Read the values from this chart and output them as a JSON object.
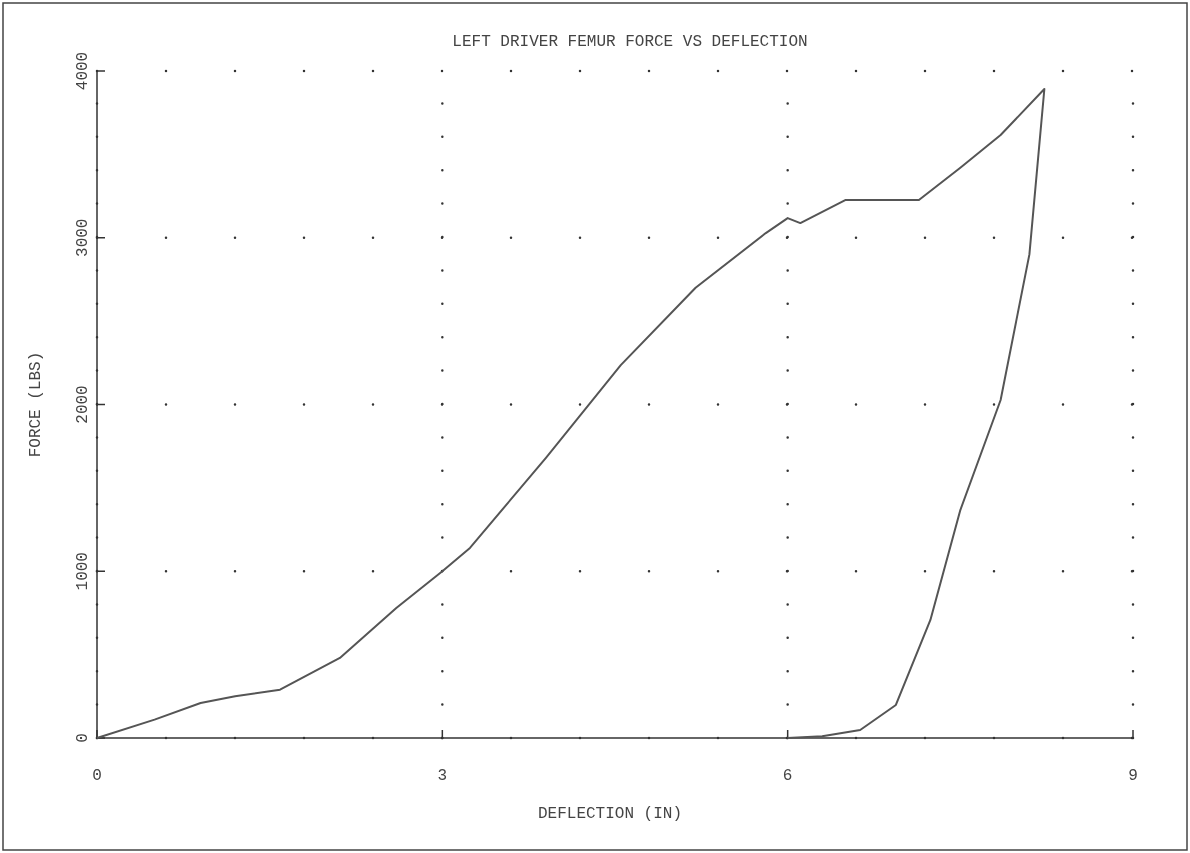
{
  "chart_data": {
    "type": "line",
    "title": "LEFT DRIVER FEMUR FORCE VS DEFLECTION",
    "xlabel": "DEFLECTION (IN)",
    "ylabel": "FORCE (LBS)",
    "xlim": [
      0,
      9
    ],
    "xticks": [
      0,
      3,
      6,
      9
    ],
    "ylim": [
      0,
      4000
    ],
    "yticks": [
      0,
      1000,
      2000,
      3000,
      4000
    ],
    "grid": true,
    "line_style": "solid",
    "series": [
      {
        "color": "#555555",
        "x": [
          0,
          0.5,
          0.9,
          1.2,
          1.59,
          2.11,
          2.6,
          3.0,
          3.24,
          3.9,
          4.55,
          5.2,
          5.81,
          6.0,
          6.11,
          6.5,
          7.14,
          7.5,
          7.85,
          8.23,
          8.1,
          7.85,
          7.5,
          7.24,
          6.94,
          6.63,
          6.3,
          6.0
        ],
        "values": [
          0,
          110,
          210,
          250,
          290,
          480,
          780,
          1000,
          1140,
          1680,
          2236,
          2700,
          3028,
          3118,
          3088,
          3226,
          3226,
          3420,
          3616,
          3892,
          2900,
          2027,
          1367,
          708,
          198,
          48,
          10,
          0
        ]
      }
    ]
  }
}
